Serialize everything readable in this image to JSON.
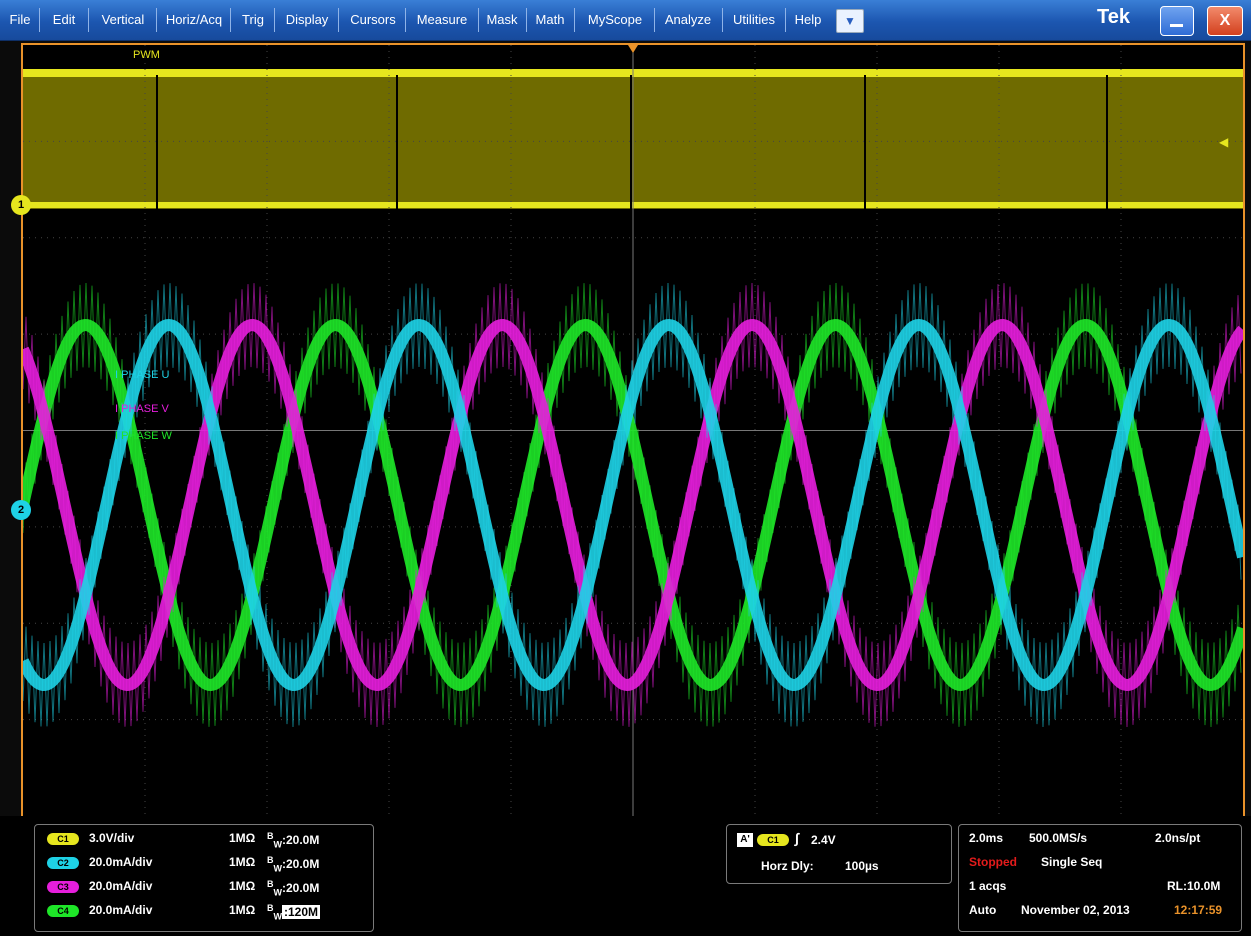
{
  "menu": {
    "items": [
      "File",
      "Edit",
      "Vertical",
      "Horiz/Acq",
      "Trig",
      "Display",
      "Cursors",
      "Measure",
      "Mask",
      "Math",
      "MyScope",
      "Analyze",
      "Utilities",
      "Help"
    ],
    "logo": "Tek",
    "close_label": "X"
  },
  "display": {
    "labels": {
      "pwm": "PWM",
      "phase_u": "I PHASE U",
      "phase_v": "I PHASE V",
      "phase_w": "I PHASE W"
    },
    "markers": {
      "ch1": "1",
      "ch2": "2"
    },
    "colors": {
      "ch1": "#e6e61e",
      "ch2": "#1ed2e6",
      "ch3": "#e61edc",
      "ch4": "#1ee628",
      "frame": "#e9922a"
    }
  },
  "channels": [
    {
      "chip": "C1",
      "scale": "3.0V/div",
      "impedance": "1MΩ",
      "bw_prefix": "B",
      "bw_sub": "W",
      "bw": ":20.0M",
      "color": "#e6e61e"
    },
    {
      "chip": "C2",
      "scale": "20.0mA/div",
      "impedance": "1MΩ",
      "bw_prefix": "B",
      "bw_sub": "W",
      "bw": ":20.0M",
      "color": "#1ed2e6"
    },
    {
      "chip": "C3",
      "scale": "20.0mA/div",
      "impedance": "1MΩ",
      "bw_prefix": "B",
      "bw_sub": "W",
      "bw": ":20.0M",
      "color": "#e61edc"
    },
    {
      "chip": "C4",
      "scale": "20.0mA/div",
      "impedance": "1MΩ",
      "bw_prefix": "B",
      "bw_sub": "W",
      "bw": ":120M",
      "color": "#1ee628"
    }
  ],
  "trigger": {
    "badge": "A'",
    "chip": "C1",
    "level": "2.4V",
    "horz_dly_label": "Horz Dly:",
    "horz_dly_value": "100µs"
  },
  "acquisition": {
    "time_div": "2.0ms",
    "sample_rate": "500.0MS/s",
    "resolution": "2.0ns/pt",
    "status": "Stopped",
    "mode": "Single Seq",
    "acqs": "1 acqs",
    "record_length": "RL:10.0M",
    "trigger_mode": "Auto",
    "date": "November 02, 2013",
    "time": "12:17:59"
  }
}
